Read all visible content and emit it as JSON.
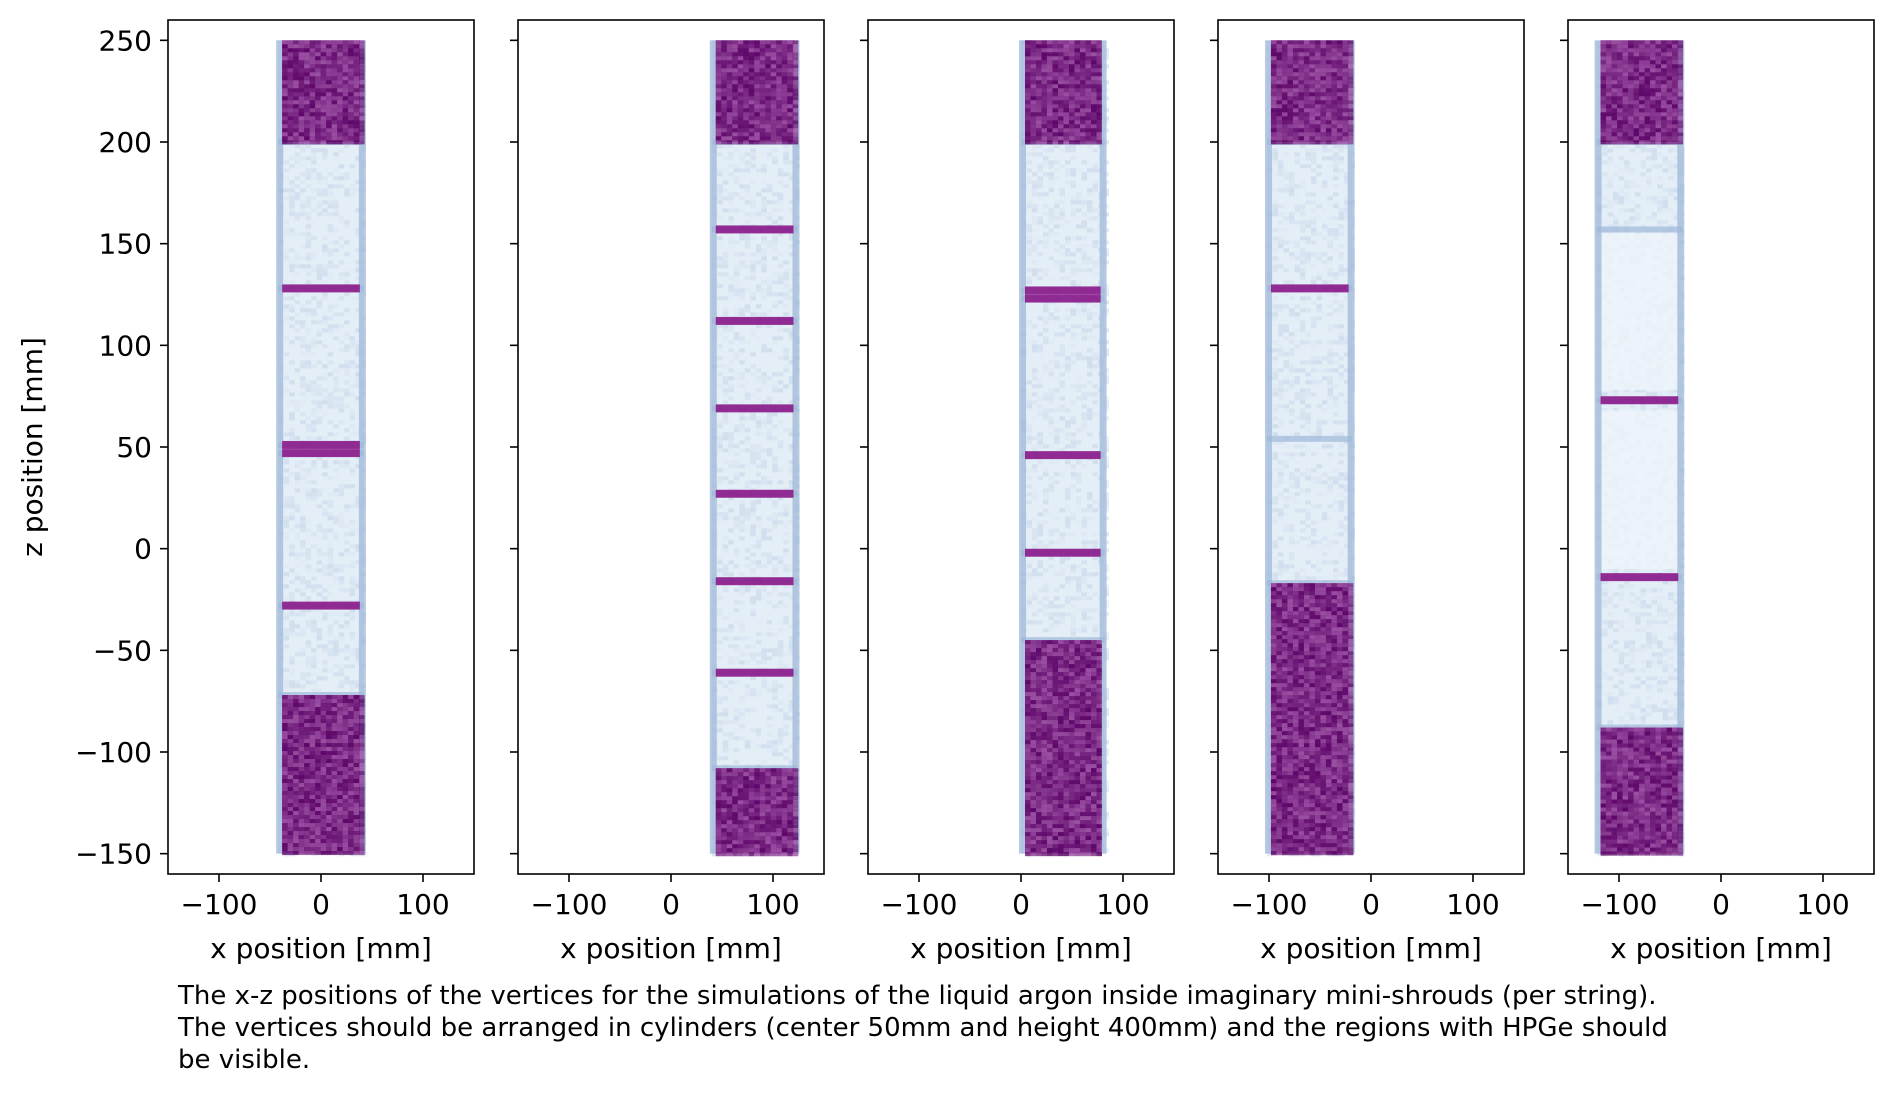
{
  "chart_data": {
    "type": "heatmap",
    "layout": "five side-by-side panels sharing the z axis",
    "colormap": "BuPu",
    "grid": false,
    "xlabel": "x position [mm]",
    "ylabel": "z position [mm]",
    "xlim": [
      -150,
      150
    ],
    "ylim": [
      -160,
      260
    ],
    "xticks": [
      {
        "value": -100,
        "label": "−100"
      },
      {
        "value": 0,
        "label": "0"
      },
      {
        "value": 100,
        "label": "100"
      }
    ],
    "yticks": [
      {
        "value": 250,
        "label": "250"
      },
      {
        "value": 200,
        "label": "200"
      },
      {
        "value": 150,
        "label": "150"
      },
      {
        "value": 100,
        "label": "100"
      },
      {
        "value": 50,
        "label": "50"
      },
      {
        "value": 0,
        "label": "0"
      },
      {
        "value": -50,
        "label": "−50"
      },
      {
        "value": -100,
        "label": "−100"
      },
      {
        "value": -150,
        "label": "−150"
      }
    ],
    "panels": [
      {
        "x_range": [
          -42,
          42
        ],
        "z_range": [
          -150,
          250
        ],
        "dense_regions": [
          [
            -150,
            -72
          ],
          [
            200,
            250
          ]
        ],
        "bands": [
          -28,
          47,
          51,
          128
        ],
        "edge_blue": [
          -72,
          -28,
          47,
          51,
          128,
          200
        ],
        "extra_light": []
      },
      {
        "x_range": [
          40,
          124
        ],
        "z_range": [
          -150,
          250
        ],
        "dense_regions": [
          [
            -150,
            -108
          ],
          [
            200,
            250
          ]
        ],
        "bands": [
          -61,
          -16,
          27,
          69,
          112,
          157
        ],
        "edge_blue": [
          -108,
          -61,
          -16,
          27,
          69,
          112,
          157,
          200
        ],
        "extra_light": []
      },
      {
        "x_range": [
          0,
          82
        ],
        "z_range": [
          -150,
          250
        ],
        "dense_regions": [
          [
            -150,
            -45
          ],
          [
            200,
            250
          ]
        ],
        "bands": [
          -2,
          46,
          123,
          127
        ],
        "edge_blue": [
          -45,
          -2,
          46,
          123,
          127,
          200
        ],
        "extra_light": []
      },
      {
        "x_range": [
          -102,
          -18
        ],
        "z_range": [
          -150,
          250
        ],
        "dense_regions": [
          [
            -150,
            -17
          ],
          [
            200,
            250
          ]
        ],
        "bands": [
          128
        ],
        "edge_blue": [
          -17,
          54,
          128,
          200
        ],
        "extra_light": []
      },
      {
        "x_range": [
          -122,
          -38
        ],
        "z_range": [
          -150,
          250
        ],
        "dense_regions": [
          [
            -150,
            -88
          ],
          [
            200,
            250
          ]
        ],
        "bands": [
          -14,
          73
        ],
        "edge_blue": [
          -88,
          -14,
          73,
          157,
          200
        ],
        "extra_light": [
          [
            -10,
            68
          ],
          [
            78,
            155
          ]
        ]
      }
    ]
  },
  "caption": {
    "line1": "The x-z positions of the vertices for the simulations of the liquid argon inside imaginary mini-shrouds (per string).",
    "line2": "The vertices should be arranged in cylinders (center 50mm and height 400mm) and the regions with HPGe should",
    "line3": "be visible."
  },
  "colors": {
    "dense": "#7a1a82",
    "dense_dark": "#5a0566",
    "light": "#e4eef7",
    "edge": "#9fb8d8",
    "band": "#8b1a8a"
  }
}
